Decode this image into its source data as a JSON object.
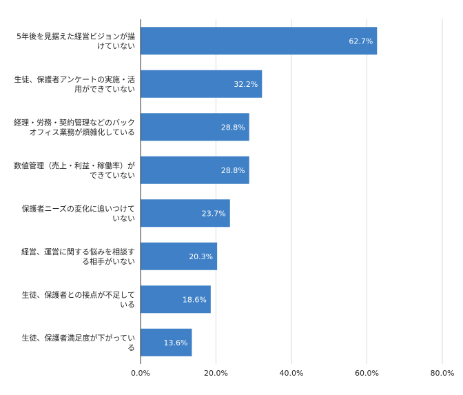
{
  "chart_data": {
    "type": "bar",
    "orientation": "horizontal",
    "title": "",
    "xlabel": "",
    "ylabel": "",
    "categories": [
      [
        "5年後を見据えた経営ビジョンが描",
        "けていない"
      ],
      [
        "生徒、保護者アンケートの実施・活",
        "用ができていない"
      ],
      [
        "経理・労務・契約管理などのバック",
        "オフィス業務が煩雑化している"
      ],
      [
        "数値管理（売上・利益・稼働率）が",
        "できていない"
      ],
      [
        "保護者ニーズの変化に追いつけて",
        "いない"
      ],
      [
        "経営、運営に関する悩みを相談す",
        "る相手がいない"
      ],
      [
        "生徒、保護者との接点が不足して",
        "いる"
      ],
      [
        "生徒、保護者満足度が下がってい",
        "る"
      ]
    ],
    "values": [
      62.7,
      32.2,
      28.8,
      28.8,
      23.7,
      20.3,
      18.6,
      13.6
    ],
    "data_labels": [
      "62.7%",
      "32.2%",
      "28.8%",
      "28.8%",
      "23.7%",
      "20.3%",
      "18.6%",
      "13.6%"
    ],
    "xlim": [
      0,
      80
    ],
    "xticks": [
      0,
      20,
      40,
      60,
      80
    ],
    "xtick_labels": [
      "0.0%",
      "20.0%",
      "40.0%",
      "60.0%",
      "80.0%"
    ],
    "grid": true,
    "bar_color": "#3f80c6",
    "legend": "none"
  }
}
